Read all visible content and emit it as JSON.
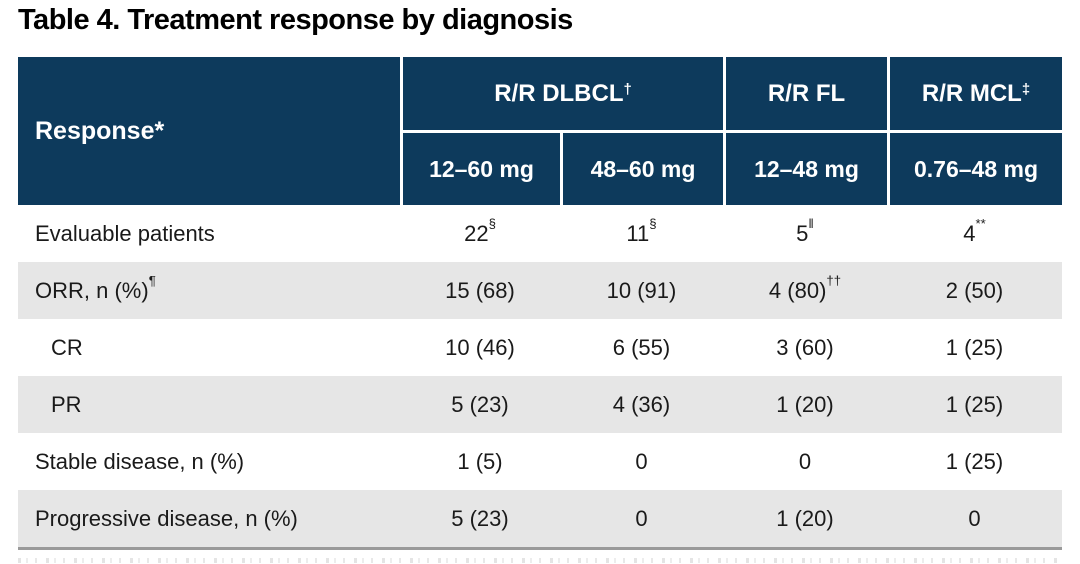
{
  "title": "Table 4. Treatment response by diagnosis",
  "colors": {
    "header_bg": "#0d3a5c",
    "header_text": "#ffffff",
    "row_bg": "#ffffff",
    "row_alt_bg": "#e6e6e6",
    "body_text": "#1a1a1a",
    "bottom_border": "#9a9a9a",
    "title_text": "#000000"
  },
  "table": {
    "corner": {
      "text": "Response*"
    },
    "groups": [
      {
        "text": "R/R DLBCL",
        "sup": "†"
      },
      {
        "text": "R/R FL",
        "sup": ""
      },
      {
        "text": "R/R MCL",
        "sup": "‡"
      }
    ],
    "doses": [
      "12–60 mg",
      "48–60 mg",
      "12–48 mg",
      "0.76–48 mg"
    ],
    "rows": [
      {
        "label": "Evaluable patients",
        "label_sup": "",
        "cells": [
          {
            "text": "22",
            "sup": "§"
          },
          {
            "text": "11",
            "sup": "§"
          },
          {
            "text": "5",
            "sup": "‖"
          },
          {
            "text": "4",
            "sup": "**"
          }
        ]
      },
      {
        "label": "ORR, n (%)",
        "label_sup": "¶",
        "cells": [
          {
            "text": "15 (68)",
            "sup": ""
          },
          {
            "text": "10 (91)",
            "sup": ""
          },
          {
            "text": "4 (80)",
            "sup": "††"
          },
          {
            "text": "2 (50)",
            "sup": ""
          }
        ]
      },
      {
        "label": "CR",
        "label_sup": "",
        "cells": [
          {
            "text": "10 (46)",
            "sup": ""
          },
          {
            "text": "6 (55)",
            "sup": ""
          },
          {
            "text": "3 (60)",
            "sup": ""
          },
          {
            "text": "1 (25)",
            "sup": ""
          }
        ]
      },
      {
        "label": "PR",
        "label_sup": "",
        "cells": [
          {
            "text": "5 (23)",
            "sup": ""
          },
          {
            "text": "4 (36)",
            "sup": ""
          },
          {
            "text": "1 (20)",
            "sup": ""
          },
          {
            "text": "1 (25)",
            "sup": ""
          }
        ]
      },
      {
        "label": "Stable disease, n (%)",
        "label_sup": "",
        "cells": [
          {
            "text": "1 (5)",
            "sup": ""
          },
          {
            "text": "0",
            "sup": ""
          },
          {
            "text": "0",
            "sup": ""
          },
          {
            "text": "1 (25)",
            "sup": ""
          }
        ]
      },
      {
        "label": "Progressive disease, n (%)",
        "label_sup": "",
        "cells": [
          {
            "text": "5 (23)",
            "sup": ""
          },
          {
            "text": "0",
            "sup": ""
          },
          {
            "text": "1 (20)",
            "sup": ""
          },
          {
            "text": "0",
            "sup": ""
          }
        ]
      }
    ]
  }
}
